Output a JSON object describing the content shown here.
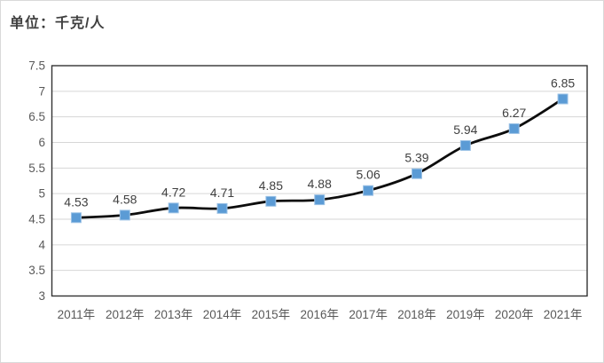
{
  "title": "单位：千克/人",
  "colors": {
    "line": "#0d0d0d",
    "marker_fill": "#5b9bd5",
    "marker_stroke": "#9dc3e6",
    "grid": "#d6d6d6",
    "plot_border": "#333333",
    "axis_text": "#595959",
    "data_label": "#404040",
    "outer_border": "#d9d9d9",
    "title_text": "#3f3f3f"
  },
  "chart_data": {
    "type": "line",
    "title": "单位：千克/人",
    "categories": [
      "2011年",
      "2012年",
      "2013年",
      "2014年",
      "2015年",
      "2016年",
      "2017年",
      "2018年",
      "2019年",
      "2020年",
      "2021年"
    ],
    "values": [
      4.53,
      4.58,
      4.72,
      4.71,
      4.85,
      4.88,
      5.06,
      5.39,
      5.94,
      6.27,
      6.85
    ],
    "data_labels": [
      "4.53",
      "4.58",
      "4.72",
      "4.71",
      "4.85",
      "4.88",
      "5.06",
      "5.39",
      "5.94",
      "6.27",
      "6.85"
    ],
    "ytick_labels": [
      "3",
      "3.5",
      "4",
      "4.5",
      "5",
      "5.5",
      "6",
      "6.5",
      "7",
      "7.5"
    ],
    "xlabel": "",
    "ylabel": "",
    "ylim": [
      3,
      7.5
    ],
    "ytick_step": 0.5,
    "grid": true,
    "legend_position": "none",
    "line_smooth": true,
    "marker_shape": "square"
  }
}
